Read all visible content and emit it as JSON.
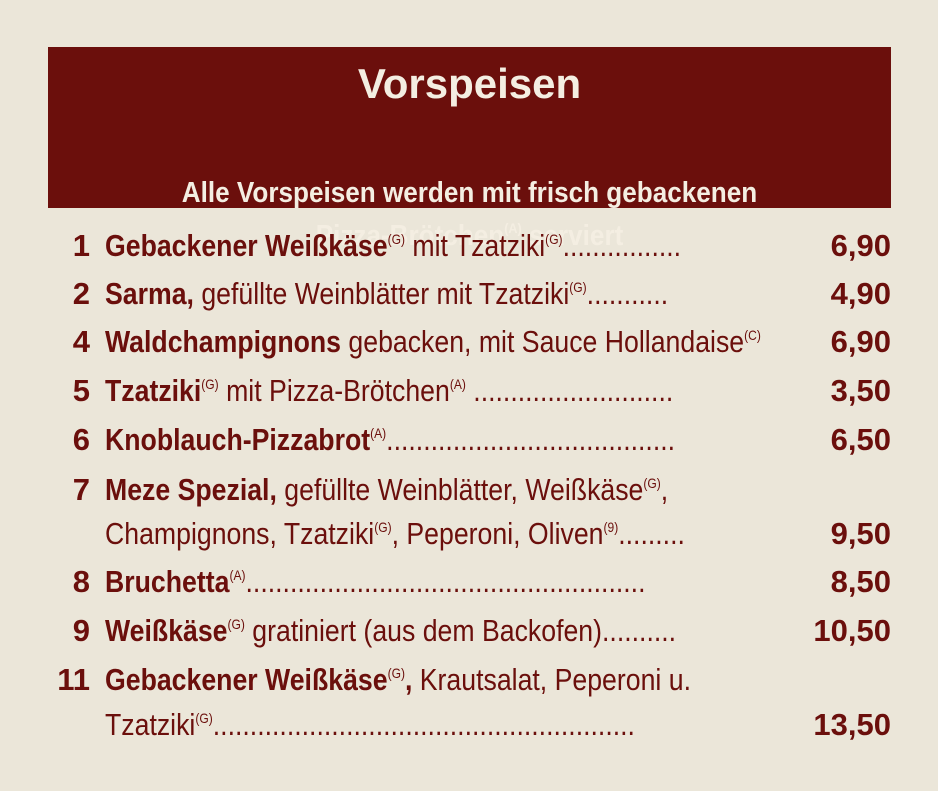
{
  "header": {
    "title": "Vorspeisen",
    "subtitle_line1": "Alle Vorspeisen werden mit frisch gebackenen",
    "subtitle_line2_pre": "Pizza-Brötchen",
    "subtitle_line2_allergen": "(A)",
    "subtitle_line2_post": " serviert"
  },
  "items": [
    {
      "number": "1",
      "lines": [
        [
          {
            "text": "Gebackener Weißkäse",
            "bold": true
          },
          {
            "text": "(G)",
            "sup": true
          },
          {
            "text": " mit Tzatziki"
          },
          {
            "text": "(G)",
            "sup": true
          },
          {
            "text": "................"
          }
        ]
      ],
      "price": "6,90"
    },
    {
      "number": "2",
      "lines": [
        [
          {
            "text": "Sarma,",
            "bold": true
          },
          {
            "text": " gefüllte Weinblätter mit Tzatziki"
          },
          {
            "text": "(G)",
            "sup": true
          },
          {
            "text": "..........."
          }
        ]
      ],
      "price": "4,90"
    },
    {
      "number": "4",
      "lines": [
        [
          {
            "text": "Waldchampignons",
            "bold": true
          },
          {
            "text": " gebacken, mit Sauce Hollandaise"
          },
          {
            "text": "(C)",
            "sup": true
          }
        ]
      ],
      "price": "6,90"
    },
    {
      "number": "5",
      "lines": [
        [
          {
            "text": "Tzatziki",
            "bold": true
          },
          {
            "text": "(G)",
            "sup": true
          },
          {
            "text": " mit Pizza-Brötchen"
          },
          {
            "text": "(A)",
            "sup": true
          },
          {
            "text": " ..........................."
          }
        ]
      ],
      "price": "3,50"
    },
    {
      "number": "6",
      "lines": [
        [
          {
            "text": "Knoblauch-Pizzabrot",
            "bold": true
          },
          {
            "text": "(A)",
            "sup": true
          },
          {
            "text": "......................................."
          }
        ]
      ],
      "price": "6,50"
    },
    {
      "number": "7",
      "lines": [
        [
          {
            "text": "Meze Spezial,",
            "bold": true
          },
          {
            "text": " gefüllte Weinblätter, Weißkäse"
          },
          {
            "text": "(G)",
            "sup": true
          },
          {
            "text": ","
          }
        ],
        [
          {
            "text": "Champignons, Tzatziki"
          },
          {
            "text": "(G)",
            "sup": true
          },
          {
            "text": ", Peperoni, Oliven"
          },
          {
            "text": "(9)",
            "sup": true
          },
          {
            "text": "........."
          }
        ]
      ],
      "price": "9,50"
    },
    {
      "number": "8",
      "lines": [
        [
          {
            "text": "Bruchetta",
            "bold": true
          },
          {
            "text": "(A)",
            "sup": true
          },
          {
            "text": "......................................................"
          }
        ]
      ],
      "price": "8,50"
    },
    {
      "number": "9",
      "lines": [
        [
          {
            "text": "Weißkäse",
            "bold": true
          },
          {
            "text": "(G)",
            "sup": true
          },
          {
            "text": " gratiniert (aus dem Backofen).........."
          }
        ]
      ],
      "price": "10,50"
    },
    {
      "number": "11",
      "lines": [
        [
          {
            "text": "Gebackener Weißkäse",
            "bold": true
          },
          {
            "text": "(G)",
            "sup": true
          },
          {
            "text": ",",
            "bold": true
          },
          {
            "text": " Krautsalat, Peperoni u."
          }
        ],
        [
          {
            "text": "Tzatziki"
          },
          {
            "text": "(G)",
            "sup": true
          },
          {
            "text": "........................................................."
          }
        ]
      ],
      "price": "13,50"
    }
  ]
}
